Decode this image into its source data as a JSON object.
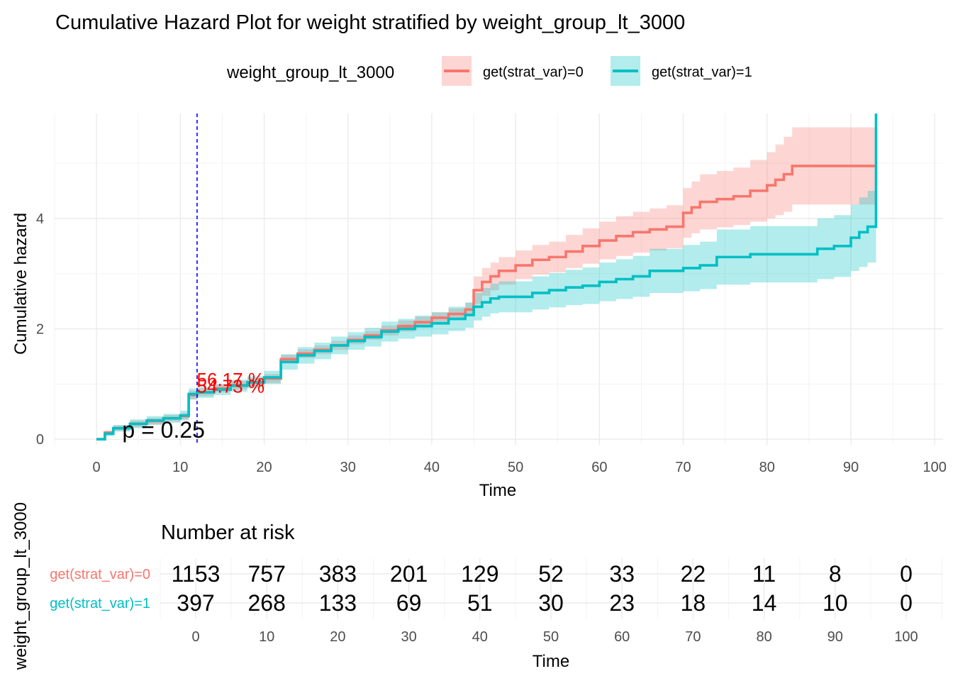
{
  "chart_data": [
    {
      "type": "line",
      "title": "Cumulative Hazard Plot for weight stratified by weight_group_lt_3000",
      "xlabel": "Time",
      "ylabel": "Cumulative hazard",
      "xlim": [
        -5,
        101
      ],
      "ylim": [
        -0.1,
        5.9
      ],
      "x_ticks": [
        0,
        10,
        20,
        30,
        40,
        50,
        60,
        70,
        80,
        90,
        100
      ],
      "x_tick_labels": [
        "0",
        "10",
        "20",
        "30",
        "40",
        "50",
        "60",
        "70",
        "80",
        "90",
        "100"
      ],
      "y_ticks": [
        0,
        2,
        4
      ],
      "y_tick_labels": [
        "0",
        "2",
        "4"
      ],
      "grid": true,
      "legend": {
        "position": "top",
        "title": "weight_group_lt_3000",
        "entries": [
          "get(strat_var)=0",
          "get(strat_var)=1"
        ]
      },
      "colors": {
        "group0": "#F8766D",
        "group1": "#00BFC4",
        "vline": "#0000FF",
        "pct_text": "#FF0000"
      },
      "vline_x": 12,
      "pvalue_text": "p = 0.25",
      "pvalue_pos": [
        8,
        0.17
      ],
      "annotations": [
        {
          "text": "56.17 %",
          "x": 16,
          "y": 1.12
        },
        {
          "text": "54.73 %",
          "x": 16,
          "y": 1.0
        }
      ],
      "series": [
        {
          "name": "get(strat_var)=0",
          "color": "#F8766D",
          "step_x": [
            0,
            1,
            2,
            4,
            6,
            8,
            10,
            11,
            12,
            14,
            16,
            18,
            20,
            22,
            24,
            26,
            28,
            30,
            32,
            34,
            36,
            38,
            40,
            42,
            44,
            45,
            46,
            47,
            48,
            50,
            52,
            54,
            56,
            58,
            60,
            62,
            64,
            66,
            68,
            70,
            71,
            72,
            74,
            76,
            78,
            80,
            81,
            82,
            83,
            84,
            86,
            88,
            90,
            92,
            93
          ],
          "y": [
            0,
            0.12,
            0.2,
            0.28,
            0.33,
            0.38,
            0.42,
            0.8,
            0.85,
            0.92,
            0.98,
            1.03,
            1.1,
            1.45,
            1.55,
            1.62,
            1.7,
            1.8,
            1.88,
            1.97,
            2.05,
            2.12,
            2.2,
            2.27,
            2.35,
            2.7,
            2.85,
            2.95,
            3.05,
            3.15,
            3.25,
            3.3,
            3.4,
            3.5,
            3.6,
            3.68,
            3.75,
            3.8,
            3.85,
            4.1,
            4.2,
            4.3,
            4.35,
            4.4,
            4.5,
            4.6,
            4.7,
            4.8,
            4.95,
            4.95,
            4.95,
            4.95,
            4.95,
            4.95,
            4.95
          ],
          "ci_lower": [
            0,
            0.08,
            0.15,
            0.22,
            0.27,
            0.32,
            0.36,
            0.72,
            0.78,
            0.85,
            0.9,
            0.95,
            1.02,
            1.37,
            1.47,
            1.54,
            1.62,
            1.72,
            1.8,
            1.88,
            1.95,
            2.02,
            2.1,
            2.17,
            2.23,
            2.45,
            2.6,
            2.7,
            2.8,
            2.9,
            2.98,
            3.02,
            3.1,
            3.18,
            3.26,
            3.32,
            3.38,
            3.42,
            3.46,
            3.65,
            3.73,
            3.8,
            3.84,
            3.88,
            3.94,
            4.0,
            4.06,
            4.12,
            4.25,
            4.25,
            4.25,
            4.25,
            4.25,
            4.25,
            4.25
          ],
          "ci_upper": [
            0,
            0.16,
            0.25,
            0.34,
            0.39,
            0.44,
            0.48,
            0.88,
            0.92,
            0.99,
            1.06,
            1.11,
            1.18,
            1.53,
            1.63,
            1.7,
            1.78,
            1.88,
            1.96,
            2.06,
            2.15,
            2.22,
            2.3,
            2.37,
            2.47,
            2.95,
            3.1,
            3.2,
            3.3,
            3.42,
            3.52,
            3.58,
            3.7,
            3.82,
            3.94,
            4.04,
            4.12,
            4.18,
            4.24,
            4.55,
            4.67,
            4.8,
            4.86,
            4.92,
            5.06,
            5.2,
            5.34,
            5.48,
            5.65,
            5.65,
            5.65,
            5.65,
            5.65,
            5.65,
            5.65
          ]
        },
        {
          "name": "get(strat_var)=1",
          "color": "#00BFC4",
          "step_x": [
            0,
            1,
            2,
            4,
            6,
            8,
            10,
            11,
            12,
            14,
            16,
            18,
            20,
            22,
            24,
            26,
            28,
            30,
            32,
            34,
            36,
            38,
            40,
            42,
            44,
            45,
            46,
            47,
            48,
            50,
            52,
            54,
            56,
            58,
            60,
            62,
            64,
            66,
            68,
            70,
            72,
            74,
            76,
            78,
            80,
            82,
            84,
            86,
            88,
            90,
            91,
            92,
            93
          ],
          "y": [
            0,
            0.1,
            0.2,
            0.28,
            0.34,
            0.38,
            0.43,
            0.82,
            0.85,
            0.9,
            0.97,
            1.03,
            1.12,
            1.4,
            1.52,
            1.6,
            1.7,
            1.78,
            1.85,
            1.95,
            2.0,
            2.05,
            2.1,
            2.18,
            2.25,
            2.4,
            2.48,
            2.55,
            2.58,
            2.58,
            2.65,
            2.7,
            2.75,
            2.78,
            2.85,
            2.9,
            2.95,
            3.05,
            3.05,
            3.1,
            3.15,
            3.3,
            3.3,
            3.35,
            3.35,
            3.35,
            3.35,
            3.45,
            3.5,
            3.65,
            3.75,
            3.85,
            3.9
          ],
          "ci_lower": [
            0,
            0.06,
            0.14,
            0.2,
            0.26,
            0.3,
            0.34,
            0.72,
            0.75,
            0.8,
            0.86,
            0.92,
            1.0,
            1.26,
            1.37,
            1.45,
            1.54,
            1.62,
            1.68,
            1.77,
            1.82,
            1.86,
            1.9,
            1.96,
            2.02,
            2.15,
            2.22,
            2.28,
            2.3,
            2.3,
            2.35,
            2.39,
            2.43,
            2.45,
            2.5,
            2.54,
            2.58,
            2.65,
            2.65,
            2.68,
            2.72,
            2.8,
            2.8,
            2.84,
            2.84,
            2.84,
            2.84,
            2.9,
            2.94,
            3.05,
            3.12,
            3.2,
            3.24
          ],
          "ci_upper": [
            0,
            0.14,
            0.26,
            0.36,
            0.42,
            0.46,
            0.52,
            0.92,
            0.95,
            1.0,
            1.08,
            1.14,
            1.24,
            1.54,
            1.67,
            1.75,
            1.86,
            1.94,
            2.02,
            2.13,
            2.18,
            2.24,
            2.3,
            2.4,
            2.48,
            2.65,
            2.74,
            2.82,
            2.86,
            2.86,
            2.95,
            3.01,
            3.07,
            3.11,
            3.2,
            3.26,
            3.32,
            3.45,
            3.45,
            3.52,
            3.58,
            3.8,
            3.8,
            3.86,
            3.86,
            3.86,
            3.86,
            4.0,
            4.06,
            4.25,
            4.38,
            4.5,
            4.56
          ]
        }
      ],
      "final_vertical_jump": {
        "x": 93,
        "series": "get(strat_var)=1",
        "to": 5.9
      }
    },
    {
      "type": "table",
      "title": "Number at risk",
      "xlabel": "Time",
      "ylabel": "weight_group_lt_3000",
      "x": [
        0,
        10,
        20,
        30,
        40,
        50,
        60,
        70,
        80,
        90,
        100
      ],
      "x_tick_labels": [
        "0",
        "10",
        "20",
        "30",
        "40",
        "50",
        "60",
        "70",
        "80",
        "90",
        "100"
      ],
      "rows": [
        {
          "label": "get(strat_var)=0",
          "color": "#F8766D",
          "values": [
            "1153",
            "757",
            "383",
            "201",
            "129",
            "52",
            "33",
            "22",
            "11",
            "8",
            "0"
          ]
        },
        {
          "label": "get(strat_var)=1",
          "color": "#00BFC4",
          "values": [
            "397",
            "268",
            "133",
            "69",
            "51",
            "30",
            "23",
            "18",
            "14",
            "10",
            "0"
          ]
        }
      ]
    }
  ]
}
